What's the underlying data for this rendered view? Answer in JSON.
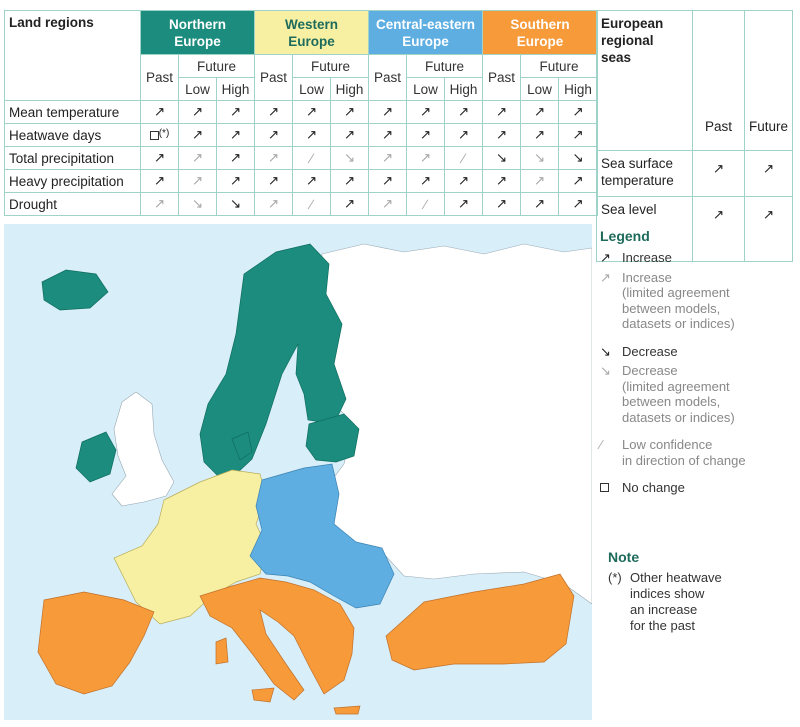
{
  "colors": {
    "northern": "#1b8c7d",
    "western": "#f7f0a3",
    "central": "#5eaee2",
    "southern": "#f69a3a",
    "sea": "#d8eef8",
    "land_other": "#ffffff"
  },
  "table": {
    "land_label": "Land regions",
    "regions": [
      {
        "key": "northern",
        "label": "Northern\nEurope"
      },
      {
        "key": "western",
        "label": "Western\nEurope"
      },
      {
        "key": "central",
        "label": "Central-eastern\nEurope"
      },
      {
        "key": "southern",
        "label": "Southern\nEurope"
      }
    ],
    "past": "Past",
    "future": "Future",
    "low": "Low",
    "high": "High",
    "rows": [
      {
        "label": "Mean temperature",
        "cells": [
          "inc",
          "inc",
          "inc",
          "inc",
          "inc",
          "inc",
          "inc",
          "inc",
          "inc",
          "inc",
          "inc",
          "inc"
        ]
      },
      {
        "label": "Heatwave days",
        "cells": [
          "nc*",
          "inc",
          "inc",
          "inc",
          "inc",
          "inc",
          "inc",
          "inc",
          "inc",
          "inc",
          "inc",
          "inc"
        ]
      },
      {
        "label": "Total precipitation",
        "cells": [
          "inc",
          "inc_l",
          "inc",
          "inc_l",
          "low",
          "dec_l",
          "inc_l",
          "inc_l",
          "low",
          "dec",
          "dec_l",
          "dec"
        ]
      },
      {
        "label": "Heavy precipitation",
        "cells": [
          "inc",
          "inc_l",
          "inc",
          "inc",
          "inc",
          "inc",
          "inc",
          "inc",
          "inc",
          "inc",
          "inc_l",
          "inc"
        ]
      },
      {
        "label": "Drought",
        "cells": [
          "inc_l",
          "dec_l",
          "dec",
          "inc_l",
          "low",
          "inc",
          "inc_l",
          "low",
          "inc",
          "inc",
          "inc",
          "inc"
        ]
      }
    ],
    "asterisk": "(*)"
  },
  "seas": {
    "title": "European\nregional\nseas",
    "past": "Past",
    "future": "Future",
    "rows": [
      {
        "label": "Sea surface\ntemperature",
        "past": "inc",
        "future": "inc"
      },
      {
        "label": "Sea level",
        "past": "inc",
        "future": "inc"
      }
    ]
  },
  "legend": {
    "title": "Legend",
    "items": [
      {
        "sym": "inc",
        "text": "Increase"
      },
      {
        "sym": "inc_l",
        "text": "Increase\n(limited agreement\nbetween models,\ndatasets or indices)"
      },
      {
        "sym": "dec",
        "text": "Decrease"
      },
      {
        "sym": "dec_l",
        "text": "Decrease\n(limited agreement\nbetween models,\ndatasets or indices)"
      },
      {
        "sym": "low",
        "text": "Low confidence\nin direction of change"
      },
      {
        "sym": "nc",
        "text": "No change"
      }
    ]
  },
  "note": {
    "title": "Note",
    "marker": "(*)",
    "text": "Other heatwave\nindices show\nan increase\nfor the past"
  }
}
